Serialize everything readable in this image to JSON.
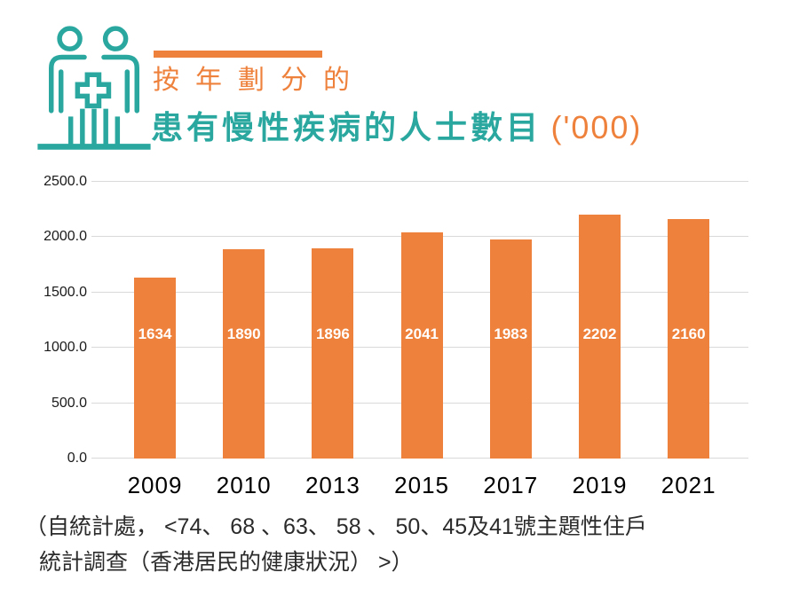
{
  "header": {
    "icon": "people-with-medical-cross",
    "subtitle": "按年劃分的",
    "title": "患有慢性疾病的人士數目",
    "unit": "('000)"
  },
  "chart_data": {
    "type": "bar",
    "title": "按年劃分的患有慢性疾病的人士數目 ('000)",
    "categories": [
      "2009",
      "2010",
      "2013",
      "2015",
      "2017",
      "2019",
      "2021"
    ],
    "values": [
      1634,
      1890,
      1896,
      2041,
      1983,
      2202,
      2160
    ],
    "xlabel": "",
    "ylabel": "",
    "ylim": [
      0,
      2500
    ],
    "ytick_step": 500,
    "ytick_labels": [
      "0.0",
      "500.0",
      "1000.0",
      "1500.0",
      "2000.0",
      "2500.0"
    ],
    "grid": true,
    "legend": false,
    "value_labels_inside_bars": true
  },
  "footnote": {
    "line1": "（自統計處， <74、 68 、63、 58 、 50、45及41號主題性住戶",
    "line2": "統計調查（香港居民的健康狀況） >）"
  },
  "colors": {
    "teal": "#2AA8A0",
    "orange": "#EE823D",
    "grid": "#D9D9D9",
    "value_label": "#FFFFFF",
    "axis_text": "#1A1A1A",
    "footnote_text": "#2B2B2B"
  }
}
